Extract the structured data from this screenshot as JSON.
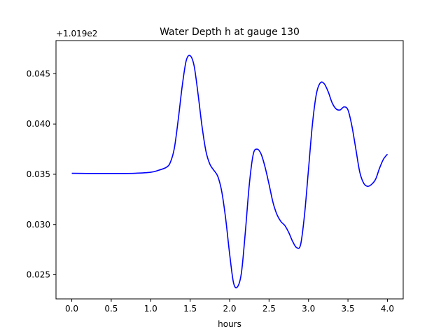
{
  "chart_data": {
    "type": "line",
    "title": "Water Depth h at gauge 130",
    "xlabel": "hours",
    "ylabel": "",
    "offset_label": "+1.019e2",
    "xlim": [
      -0.2,
      4.2
    ],
    "ylim": [
      0.0226,
      0.0483
    ],
    "xticks": [
      0.0,
      0.5,
      1.0,
      1.5,
      2.0,
      2.5,
      3.0,
      3.5,
      4.0
    ],
    "xtick_labels": [
      "0.0",
      "0.5",
      "1.0",
      "1.5",
      "2.0",
      "2.5",
      "3.0",
      "3.5",
      "4.0"
    ],
    "yticks": [
      0.025,
      0.03,
      0.035,
      0.04,
      0.045
    ],
    "ytick_labels": [
      "0.025",
      "0.030",
      "0.035",
      "0.040",
      "0.045"
    ],
    "grid": false,
    "series": [
      {
        "color": "#0000ff",
        "x": [
          0.0,
          0.2,
          0.4,
          0.6,
          0.8,
          1.0,
          1.1,
          1.2,
          1.25,
          1.3,
          1.35,
          1.4,
          1.45,
          1.5,
          1.55,
          1.6,
          1.65,
          1.7,
          1.75,
          1.8,
          1.85,
          1.9,
          1.95,
          2.0,
          2.05,
          2.1,
          2.15,
          2.2,
          2.25,
          2.3,
          2.35,
          2.4,
          2.45,
          2.5,
          2.55,
          2.6,
          2.65,
          2.7,
          2.75,
          2.8,
          2.85,
          2.9,
          2.95,
          3.0,
          3.05,
          3.1,
          3.15,
          3.2,
          3.25,
          3.3,
          3.35,
          3.4,
          3.45,
          3.5,
          3.55,
          3.6,
          3.65,
          3.7,
          3.75,
          3.8,
          3.85,
          3.9,
          3.95,
          4.0
        ],
        "y": [
          0.0351,
          0.03508,
          0.03508,
          0.03508,
          0.0351,
          0.0352,
          0.0354,
          0.0357,
          0.0362,
          0.0376,
          0.0405,
          0.0438,
          0.0463,
          0.0468,
          0.0458,
          0.043,
          0.0398,
          0.0373,
          0.036,
          0.0354,
          0.0348,
          0.0333,
          0.0306,
          0.0271,
          0.0242,
          0.0238,
          0.0252,
          0.0293,
          0.034,
          0.037,
          0.0375,
          0.037,
          0.0357,
          0.034,
          0.0322,
          0.031,
          0.0303,
          0.0299,
          0.0292,
          0.0283,
          0.0277,
          0.028,
          0.031,
          0.0355,
          0.04,
          0.043,
          0.0441,
          0.044,
          0.0432,
          0.0421,
          0.0415,
          0.0414,
          0.0417,
          0.0414,
          0.0398,
          0.0375,
          0.0352,
          0.0341,
          0.0338,
          0.034,
          0.0345,
          0.0356,
          0.0365,
          0.037
        ]
      }
    ]
  }
}
